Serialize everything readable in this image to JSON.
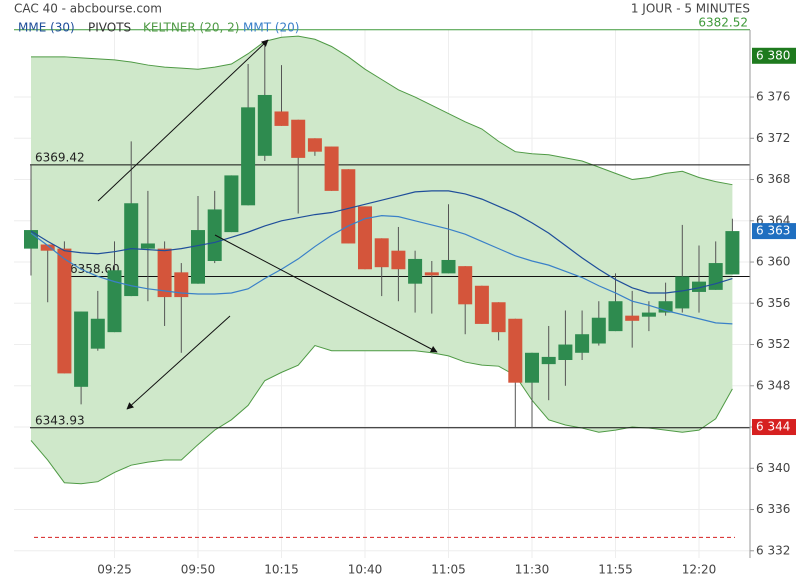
{
  "chart_data": {
    "type": "candlestick",
    "title": "CAC 40 - abcbourse.com",
    "subtitle": "1 JOUR - 5 MINUTES",
    "categories": [
      null,
      null,
      null,
      null,
      null,
      "09:25",
      null,
      null,
      null,
      null,
      "09:50",
      null,
      null,
      null,
      null,
      "10:15",
      null,
      null,
      null,
      null,
      "10:40",
      null,
      null,
      null,
      null,
      "11:05",
      null,
      null,
      null,
      null,
      "11:30",
      null,
      null,
      null,
      null,
      "11:55",
      null,
      null,
      null,
      null,
      "12:20",
      null,
      null
    ],
    "open": [
      6361.3,
      6361.7,
      6361.3,
      6347.9,
      6351.6,
      6353.2,
      6356.7,
      6361.3,
      6361.3,
      6359.0,
      6357.9,
      6360.1,
      6362.9,
      6365.5,
      6370.3,
      6374.6,
      6373.8,
      6372.0,
      6371.2,
      6369.0,
      6365.4,
      6362.3,
      6361.1,
      6357.9,
      6359.0,
      6358.9,
      6359.6,
      6357.7,
      6356.1,
      6354.5,
      6348.3,
      6350.1,
      6350.5,
      6351.2,
      6352.1,
      6353.3,
      6354.8,
      6354.7,
      6355.1,
      6355.5,
      6357.1,
      6357.3,
      6358.8
    ],
    "high": [
      6369.4,
      6361.7,
      6362.0,
      6355.2,
      6357.2,
      6362.0,
      6371.7,
      6366.9,
      6362.0,
      6359.9,
      6366.4,
      6366.9,
      6368.4,
      6379.2,
      6381.4,
      6379.1,
      6373.8,
      6372.0,
      6371.2,
      6369.0,
      6365.4,
      6362.3,
      6363.4,
      6361.1,
      6360.1,
      6365.6,
      6359.6,
      6357.7,
      6356.1,
      6354.5,
      6351.2,
      6353.8,
      6355.3,
      6355.3,
      6356.2,
      6358.9,
      6357.2,
      6356.2,
      6358.0,
      6363.6,
      6361.6,
      6362.0,
      6364.2
    ],
    "low": [
      6358.7,
      6356.1,
      6349.2,
      6346.2,
      6351.4,
      6353.2,
      6356.7,
      6356.2,
      6353.8,
      6351.2,
      6357.9,
      6359.9,
      6362.9,
      6365.5,
      6369.8,
      6373.2,
      6364.7,
      6370.3,
      6366.9,
      6361.8,
      6359.3,
      6356.7,
      6356.2,
      6355.1,
      6355.0,
      6358.9,
      6353.0,
      6354.0,
      6352.4,
      6343.9,
      6343.9,
      6346.6,
      6348.0,
      6350.5,
      6351.9,
      6353.3,
      6351.7,
      6353.3,
      6354.8,
      6355.1,
      6355.1,
      6357.3,
      6358.8
    ],
    "close": [
      6363.1,
      6361.1,
      6349.2,
      6355.2,
      6354.5,
      6359.2,
      6365.7,
      6361.8,
      6356.6,
      6356.6,
      6363.1,
      6365.1,
      6368.4,
      6375.0,
      6376.2,
      6373.2,
      6370.1,
      6370.7,
      6366.9,
      6361.8,
      6359.3,
      6359.5,
      6359.3,
      6360.3,
      6358.7,
      6360.2,
      6355.9,
      6354.0,
      6353.2,
      6348.3,
      6351.2,
      6350.8,
      6352.0,
      6353.0,
      6354.6,
      6356.2,
      6354.3,
      6355.1,
      6356.2,
      6358.6,
      6358.1,
      6359.9,
      6363.0
    ],
    "up_color": "#2e8b4f",
    "down_color": "#d4553b",
    "ylim": [
      6331.3,
      6382.5
    ],
    "yticks": [
      {
        "value": 6332,
        "label": "6 332"
      },
      {
        "value": 6336,
        "label": "6 336"
      },
      {
        "value": 6340,
        "label": "6 340"
      },
      {
        "value": 6344,
        "label": "6 344"
      },
      {
        "value": 6348,
        "label": "6 348"
      },
      {
        "value": 6352,
        "label": "6 352"
      },
      {
        "value": 6356,
        "label": "6 356"
      },
      {
        "value": 6360,
        "label": "6 360"
      },
      {
        "value": 6364,
        "label": "6 364"
      },
      {
        "value": 6368,
        "label": "6 368"
      },
      {
        "value": 6372,
        "label": "6 372"
      },
      {
        "value": 6376,
        "label": "6 376"
      }
    ],
    "grid": true,
    "keltner": {
      "name": "KELTNER (20, 2)",
      "color": "#4f9a45",
      "fill": "#cfe8ca",
      "upper": [
        6379.9,
        6379.9,
        6379.9,
        6379.8,
        6379.7,
        6379.6,
        6379.4,
        6379.1,
        6378.9,
        6378.8,
        6378.7,
        6378.9,
        6379.2,
        6380.2,
        6381.4,
        6381.8,
        6381.9,
        6381.6,
        6380.9,
        6379.9,
        6378.7,
        6377.7,
        6376.7,
        6376.0,
        6375.2,
        6374.4,
        6373.6,
        6372.9,
        6371.7,
        6370.7,
        6370.5,
        6370.4,
        6370.1,
        6369.8,
        6369.2,
        6368.6,
        6368.0,
        6368.2,
        6368.6,
        6368.8,
        6368.2,
        6367.8,
        6367.5
      ],
      "lower": [
        6342.7,
        6340.8,
        6338.6,
        6338.5,
        6338.7,
        6339.6,
        6340.3,
        6340.6,
        6340.8,
        6340.8,
        6342.3,
        6343.7,
        6344.7,
        6346.1,
        6348.5,
        6349.3,
        6350.0,
        6351.9,
        6351.4,
        6351.4,
        6351.4,
        6351.4,
        6351.4,
        6351.4,
        6351.2,
        6350.9,
        6350.3,
        6350.0,
        6349.9,
        6349.0,
        6346.6,
        6344.7,
        6344.2,
        6343.9,
        6343.5,
        6343.7,
        6344.0,
        6343.9,
        6343.7,
        6343.5,
        6343.7,
        6344.8,
        6347.7
      ]
    },
    "series": [
      {
        "name": "MME (30)",
        "color": "#1f4e9a",
        "values": [
          6363.0,
          6362.0,
          6361.1,
          6360.9,
          6360.8,
          6361.0,
          6361.3,
          6361.2,
          6361.1,
          6361.3,
          6361.6,
          6361.9,
          6362.4,
          6362.9,
          6363.5,
          6364.0,
          6364.3,
          6364.6,
          6364.8,
          6365.2,
          6365.6,
          6366.0,
          6366.4,
          6366.8,
          6366.9,
          6366.9,
          6366.6,
          6366.1,
          6365.4,
          6364.7,
          6363.8,
          6362.8,
          6361.6,
          6360.4,
          6359.3,
          6358.3,
          6357.5,
          6357.0,
          6357.0,
          6357.2,
          6357.5,
          6357.9,
          6358.4
        ]
      },
      {
        "name": "MMT (20)",
        "color": "#3a80c8",
        "values": [
          6362.8,
          6361.6,
          6360.3,
          6359.3,
          6358.6,
          6358.1,
          6357.7,
          6357.4,
          6357.2,
          6357.0,
          6356.9,
          6356.9,
          6357.0,
          6357.4,
          6358.4,
          6359.3,
          6360.3,
          6361.5,
          6362.6,
          6363.5,
          6364.2,
          6364.5,
          6364.4,
          6364.0,
          6363.6,
          6363.2,
          6362.7,
          6362.0,
          6361.3,
          6360.6,
          6360.1,
          6359.7,
          6359.1,
          6358.5,
          6357.7,
          6357.0,
          6356.2,
          6355.8,
          6355.3,
          6354.9,
          6354.5,
          6354.1,
          6354.0
        ]
      }
    ],
    "pivots_name": "PIVOTS",
    "pivots": [
      {
        "value": 6369.42,
        "label": "6369.42"
      },
      {
        "value": 6358.6,
        "label": "6358.60"
      },
      {
        "value": 6343.93,
        "label": "6343.93"
      }
    ],
    "top_line": {
      "value": 6382.52,
      "label": "6382.52",
      "color": "#3f9a3a"
    },
    "dashed_line": {
      "value": 6333.3,
      "color": "#d62020"
    },
    "price_tags": [
      {
        "value": 6380,
        "label": "6 380",
        "color": "#1e7a1e"
      },
      {
        "value": 6363,
        "label": "6 363",
        "color": "#1f6fc0"
      },
      {
        "value": 6344,
        "label": "6 344",
        "color": "#d62020"
      }
    ]
  }
}
